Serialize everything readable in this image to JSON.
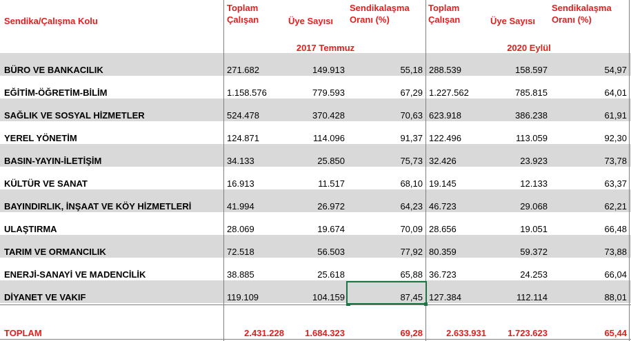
{
  "header": {
    "col_label": "Sendika/Çalışma Kolu",
    "toplam": [
      "Toplam",
      "Çalışan"
    ],
    "uye": "Üye Sayısı",
    "oran": [
      "Sendikalaşma",
      "Oranı (%)"
    ],
    "period_2017": "2017 Temmuz",
    "period_2020": "2020 Eylül"
  },
  "rows": [
    {
      "name": "BÜRO VE BANKACILIK",
      "t2017": "271.682",
      "u2017": "149.913",
      "o2017": "55,18",
      "t2020": "288.539",
      "u2020": "158.597",
      "o2020": "54,97"
    },
    {
      "name": "EĞİTİM-ÖĞRETİM-BİLİM",
      "t2017": "1.158.576",
      "u2017": "779.593",
      "o2017": "67,29",
      "t2020": "1.227.562",
      "u2020": "785.815",
      "o2020": "64,01"
    },
    {
      "name": "SAĞLIK VE SOSYAL HİZMETLER",
      "t2017": "524.478",
      "u2017": "370.428",
      "o2017": "70,63",
      "t2020": "623.918",
      "u2020": "386.238",
      "o2020": "61,91"
    },
    {
      "name": "YEREL YÖNETİM",
      "t2017": "124.871",
      "u2017": "114.096",
      "o2017": "91,37",
      "t2020": "122.496",
      "u2020": "113.059",
      "o2020": "92,30"
    },
    {
      "name": "BASIN-YAYIN-İLETİŞİM",
      "t2017": "34.133",
      "u2017": "25.850",
      "o2017": "75,73",
      "t2020": "32.426",
      "u2020": "23.923",
      "o2020": "73,78"
    },
    {
      "name": "KÜLTÜR VE SANAT",
      "t2017": "16.913",
      "u2017": "11.517",
      "o2017": "68,10",
      "t2020": "19.145",
      "u2020": "12.133",
      "o2020": "63,37"
    },
    {
      "name": "BAYINDIRLIK, İNŞAAT VE KÖY HİZMETLERİ",
      "t2017": "41.994",
      "u2017": "26.972",
      "o2017": "64,23",
      "t2020": "46.723",
      "u2020": "29.068",
      "o2020": "62,21"
    },
    {
      "name": "ULAŞTIRMA",
      "t2017": "28.069",
      "u2017": "19.674",
      "o2017": "70,09",
      "t2020": "28.656",
      "u2020": "19.051",
      "o2020": "66,48"
    },
    {
      "name": "TARIM VE ORMANCILIK",
      "t2017": "72.518",
      "u2017": "56.503",
      "o2017": "77,92",
      "t2020": "80.359",
      "u2020": "59.372",
      "o2020": "73,88"
    },
    {
      "name": "ENERJİ-SANAYİ VE MADENCİLİK",
      "t2017": "38.885",
      "u2017": "25.618",
      "o2017": "65,88",
      "t2020": "36.723",
      "u2020": "24.253",
      "o2020": "66,04"
    },
    {
      "name": "DİYANET VE VAKIF",
      "t2017": "119.109",
      "u2017": "104.159",
      "o2017": "87,45",
      "t2020": "127.384",
      "u2020": "112.114",
      "o2020": "88,01"
    }
  ],
  "total": {
    "name": "TOPLAM",
    "t2017": "2.431.228",
    "u2017": "1.684.323",
    "o2017": "69,28",
    "t2020": "2.633.931",
    "u2020": "1.723.623",
    "o2020": "65,44"
  },
  "colors": {
    "band": "#d9d9d9",
    "header_text": "#e0201f",
    "selection": "#1f7244",
    "grid": "#7f7f7f"
  }
}
